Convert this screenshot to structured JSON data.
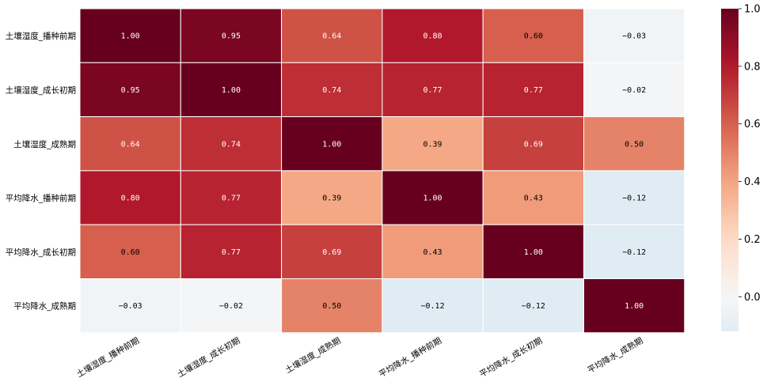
{
  "chart_data": {
    "type": "heatmap",
    "rows": [
      "土壤湿度_播种前期",
      "土壤湿度_成长初期",
      "土壤湿度_成熟期",
      "平均降水_播种前期",
      "平均降水_成长初期",
      "平均降水_成熟期"
    ],
    "columns": [
      "土壤湿度_播种前期",
      "土壤湿度_成长初期",
      "土壤湿度_成熟期",
      "平均降水_播种前期",
      "平均降水_成长初期",
      "平均降水_成熟期"
    ],
    "values": [
      [
        1.0,
        0.95,
        0.64,
        0.8,
        0.6,
        -0.03
      ],
      [
        0.95,
        1.0,
        0.74,
        0.77,
        0.77,
        -0.02
      ],
      [
        0.64,
        0.74,
        1.0,
        0.39,
        0.69,
        0.5
      ],
      [
        0.8,
        0.77,
        0.39,
        1.0,
        0.43,
        -0.12
      ],
      [
        0.6,
        0.77,
        0.69,
        0.43,
        1.0,
        -0.12
      ],
      [
        -0.03,
        -0.02,
        0.5,
        -0.12,
        -0.12,
        1.0
      ]
    ],
    "cell_labels": [
      [
        "1.00",
        "0.95",
        "0.64",
        "0.80",
        "0.60",
        "−0.03"
      ],
      [
        "0.95",
        "1.00",
        "0.74",
        "0.77",
        "0.77",
        "−0.02"
      ],
      [
        "0.64",
        "0.74",
        "1.00",
        "0.39",
        "0.69",
        "0.50"
      ],
      [
        "0.80",
        "0.77",
        "0.39",
        "1.00",
        "0.43",
        "−0.12"
      ],
      [
        "0.60",
        "0.77",
        "0.69",
        "0.43",
        "1.00",
        "−0.12"
      ],
      [
        "−0.03",
        "−0.02",
        "0.50",
        "−0.12",
        "−0.12",
        "1.00"
      ]
    ],
    "colormap": "RdBu_r",
    "colorbar": {
      "range": [
        -0.12,
        1.0
      ],
      "ticks": [
        0.0,
        0.2,
        0.4,
        0.6,
        0.8,
        1.0
      ],
      "tick_labels": [
        "0.0",
        "0.2",
        "0.4",
        "0.6",
        "0.8",
        "1.0"
      ]
    },
    "cell_border_color": "#ffffff",
    "annotation_dark_text": "#000000",
    "annotation_light_text": "#ffffff"
  }
}
